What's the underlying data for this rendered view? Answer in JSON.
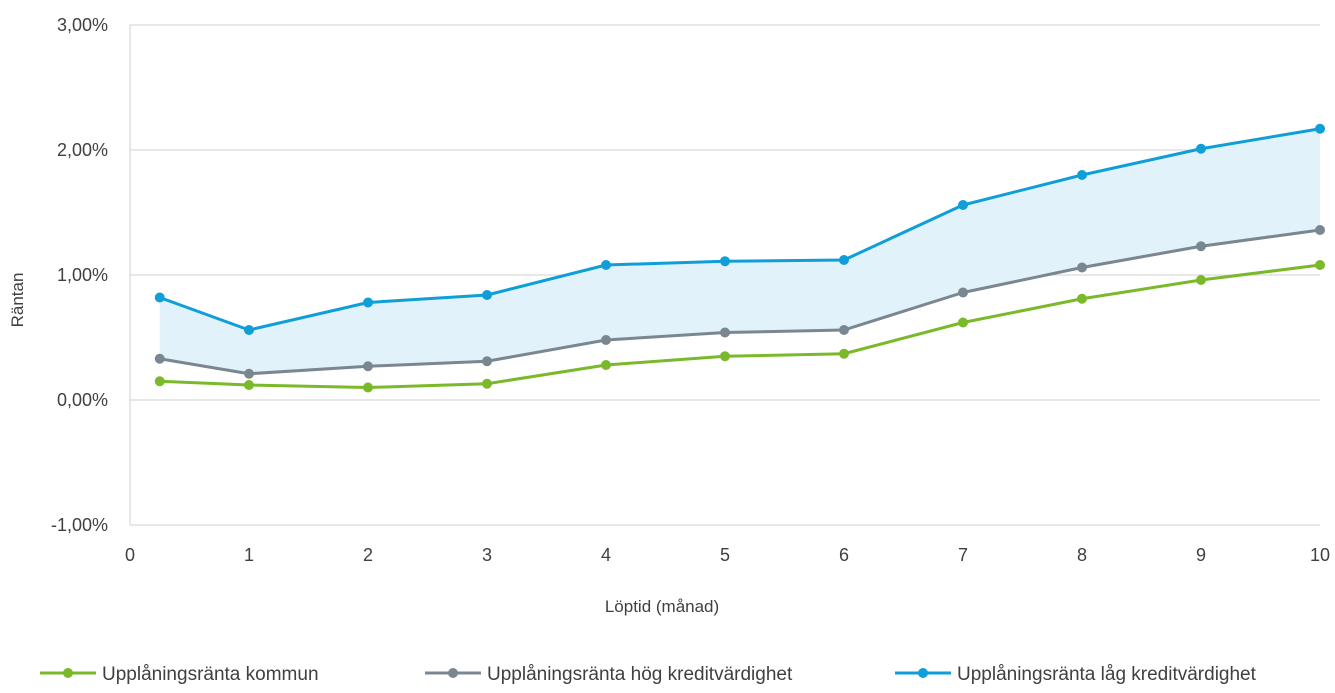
{
  "chart_data": {
    "type": "line",
    "xlabel": "Löptid (månad)",
    "ylabel": "Räntan",
    "xlim": [
      0,
      10
    ],
    "ylim": [
      -1.0,
      3.0
    ],
    "x_ticks": [
      "0",
      "1",
      "2",
      "3",
      "4",
      "5",
      "6",
      "7",
      "8",
      "9",
      "10"
    ],
    "y_ticks": [
      {
        "value": -1.0,
        "label": "-1,00%"
      },
      {
        "value": 0.0,
        "label": "0,00%"
      },
      {
        "value": 1.0,
        "label": "1,00%"
      },
      {
        "value": 2.0,
        "label": "2,00%"
      },
      {
        "value": 3.0,
        "label": "3,00%"
      }
    ],
    "grid": true,
    "legend_position": "bottom",
    "shaded_band_between": [
      "Upplåningsränta hög kreditvärdighet",
      "Upplåningsränta låg kreditvärdighet"
    ],
    "band_color": "#E1F2FA",
    "x": [
      0.25,
      1,
      2,
      3,
      4,
      5,
      6,
      7,
      8,
      9,
      10
    ],
    "series": [
      {
        "name": "Upplåningsränta kommun",
        "color": "#7AB929",
        "values": [
          0.15,
          0.12,
          0.1,
          0.13,
          0.28,
          0.35,
          0.37,
          0.62,
          0.81,
          0.96,
          1.08
        ]
      },
      {
        "name": "Upplåningsränta hög kreditvärdighet",
        "color": "#7B8790",
        "values": [
          0.33,
          0.21,
          0.27,
          0.31,
          0.48,
          0.54,
          0.56,
          0.86,
          1.06,
          1.23,
          1.36
        ]
      },
      {
        "name": "Upplåningsränta låg kreditvärdighet",
        "color": "#0F9ED8",
        "values": [
          0.82,
          0.56,
          0.78,
          0.84,
          1.08,
          1.11,
          1.12,
          1.56,
          1.8,
          2.01,
          2.17
        ]
      }
    ]
  }
}
